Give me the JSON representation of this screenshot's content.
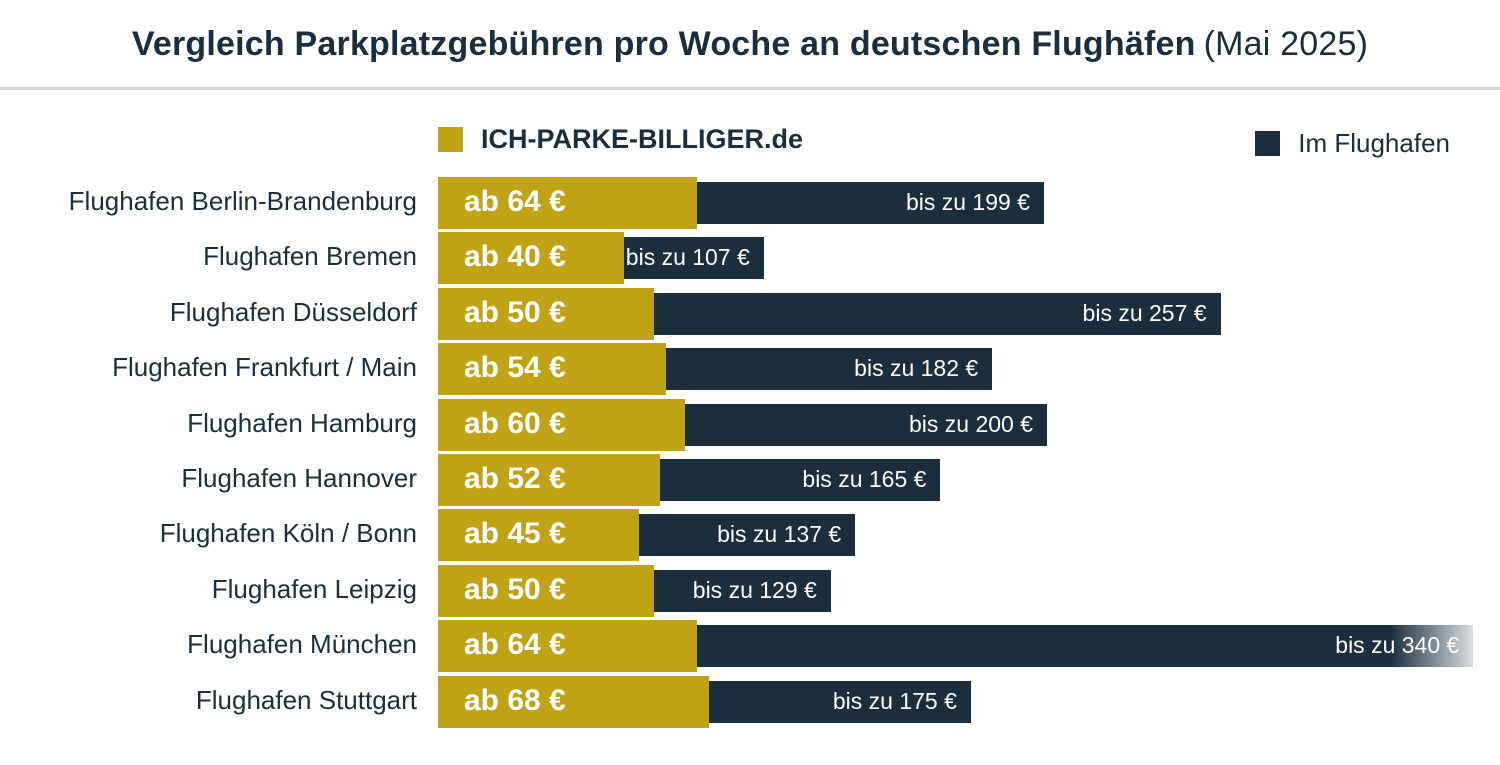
{
  "title": {
    "main": "Vergleich Parkplatzgebühren pro Woche an deutschen Flughäfen",
    "sub": "(Mai 2025)"
  },
  "legend": {
    "provider": "ICH-PARKE-BILLIGER.de",
    "airport": "Im Flughafen"
  },
  "colors": {
    "provider": "#bfa315",
    "airport": "#1a2e3d",
    "title": "#1a2e3d",
    "rule": "#d4d4d4"
  },
  "chart_data": {
    "type": "bar",
    "orientation": "horizontal",
    "title": "Vergleich Parkplatzgebühren pro Woche an deutschen Flughäfen (Mai 2025)",
    "unit": "€",
    "categories": [
      "Flughafen Berlin-Brandenburg",
      "Flughafen Bremen",
      "Flughafen Düsseldorf",
      "Flughafen Frankfurt / Main",
      "Flughafen Hamburg",
      "Flughafen Hannover",
      "Flughafen Köln / Bonn",
      "Flughafen Leipzig",
      "Flughafen München",
      "Flughafen Stuttgart"
    ],
    "series": [
      {
        "name": "ICH-PARKE-BILLIGER.de",
        "values": [
          64,
          40,
          50,
          54,
          60,
          52,
          45,
          50,
          64,
          68
        ],
        "labels": [
          "ab 64 €",
          "ab 40 €",
          "ab 50 €",
          "ab 54 €",
          "ab 60 €",
          "ab 52 €",
          "ab 45 €",
          "ab 50 €",
          "ab 64 €",
          "ab 68 €"
        ]
      },
      {
        "name": "Im Flughafen",
        "values": [
          199,
          107,
          257,
          182,
          200,
          165,
          137,
          129,
          340,
          175
        ],
        "labels": [
          "bis zu 199 €",
          "bis zu 107 €",
          "bis zu 257 €",
          "bis zu 182 €",
          "bis zu 200 €",
          "bis zu 165 €",
          "bis zu 137 €",
          "bis zu 129 €",
          "bis zu 340 €",
          "bis zu 175 €"
        ]
      }
    ],
    "overlay": true,
    "grid": false,
    "legend_position": "top"
  }
}
